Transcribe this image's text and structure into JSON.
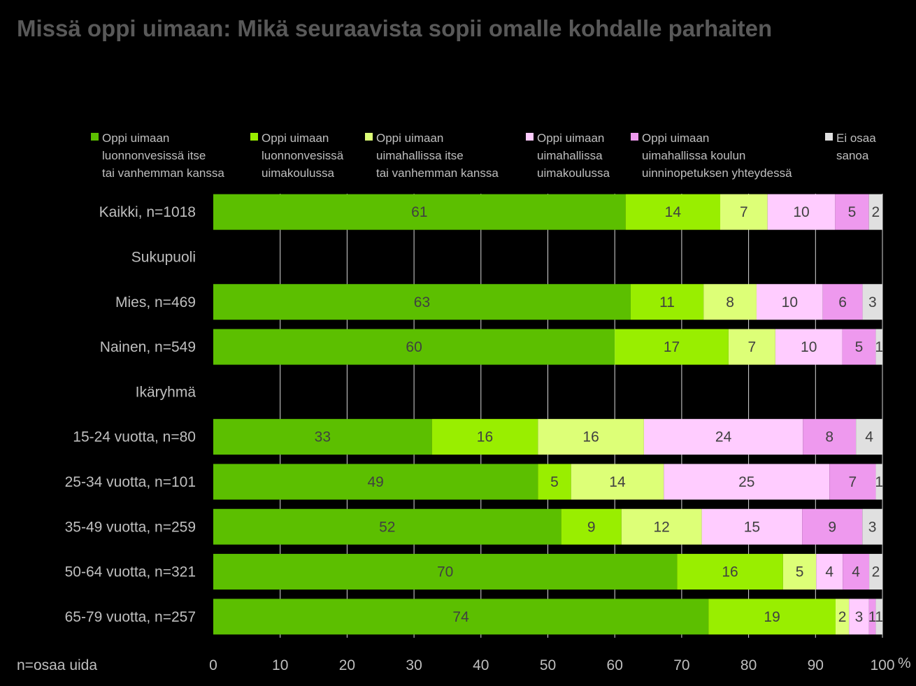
{
  "chart_data": {
    "type": "bar",
    "orientation": "horizontal",
    "stacked": true,
    "title": "Missä oppi uimaan: Mikä seuraavista sopii omalle kohdalle parhaiten",
    "footnote": "n=osaa uida",
    "unit_label": "%",
    "xlim": [
      0,
      100
    ],
    "x_ticks": [
      "0",
      "10",
      "20",
      "30",
      "40",
      "50",
      "60",
      "70",
      "80",
      "90",
      "100"
    ],
    "grid": true,
    "legend_position": "top",
    "series": [
      {
        "name": [
          "Oppi uimaan",
          "luonnonvesissä itse",
          "tai vanhemman kanssa"
        ],
        "color": "#5cbf00"
      },
      {
        "name": [
          "Oppi uimaan",
          "luonnonvesissä",
          "uimakoulussa"
        ],
        "color": "#99ee00"
      },
      {
        "name": [
          "Oppi uimaan",
          "uimahallissa itse",
          "tai vanhemman kanssa"
        ],
        "color": "#ddff77"
      },
      {
        "name": [
          "Oppi uimaan",
          "uimahallissa",
          "uimakoulussa"
        ],
        "color": "#ffccff"
      },
      {
        "name": [
          "Oppi uimaan",
          "uimahallissa koulun",
          "uinninopetuksen yhteydessä"
        ],
        "color": "#ee99ee"
      },
      {
        "name": [
          "Ei osaa",
          "sanoa"
        ],
        "color": "#e0e0e0"
      }
    ],
    "categories": [
      {
        "label": "Kaikki, n=1018",
        "values": [
          61,
          14,
          7,
          10,
          5,
          2
        ],
        "labels": [
          "61",
          "14",
          "7",
          "10",
          "5",
          "2"
        ]
      },
      {
        "label": "Sukupuoli",
        "header": true
      },
      {
        "label": "Mies, n=469",
        "values": [
          63,
          11,
          8,
          10,
          6,
          3
        ],
        "labels": [
          "63",
          "11",
          "8",
          "10",
          "6",
          "3"
        ]
      },
      {
        "label": "Nainen, n=549",
        "values": [
          60,
          17,
          7,
          10,
          5,
          1
        ],
        "labels": [
          "60",
          "17",
          "7",
          "10",
          "5",
          "1"
        ]
      },
      {
        "label": "Ikäryhmä",
        "header": true
      },
      {
        "label": "15-24 vuotta, n=80",
        "values": [
          33,
          16,
          16,
          24,
          8,
          4
        ],
        "labels": [
          "33",
          "16",
          "16",
          "24",
          "8",
          "4"
        ]
      },
      {
        "label": "25-34 vuotta, n=101",
        "values": [
          49,
          5,
          14,
          25,
          7,
          1
        ],
        "labels": [
          "49",
          "5",
          "14",
          "25",
          "7",
          "1"
        ]
      },
      {
        "label": "35-49 vuotta, n=259",
        "values": [
          52,
          9,
          12,
          15,
          9,
          3
        ],
        "labels": [
          "52",
          "9",
          "12",
          "15",
          "9",
          "3"
        ]
      },
      {
        "label": "50-64 vuotta, n=321",
        "values": [
          70,
          16,
          5,
          4,
          4,
          2
        ],
        "labels": [
          "70",
          "16",
          "5",
          "4",
          "4",
          "2"
        ]
      },
      {
        "label": "65-79 vuotta, n=257",
        "values": [
          74,
          19,
          2,
          3,
          1,
          1
        ],
        "labels": [
          "74",
          "19",
          "2",
          "3",
          "1",
          "1"
        ]
      }
    ]
  }
}
